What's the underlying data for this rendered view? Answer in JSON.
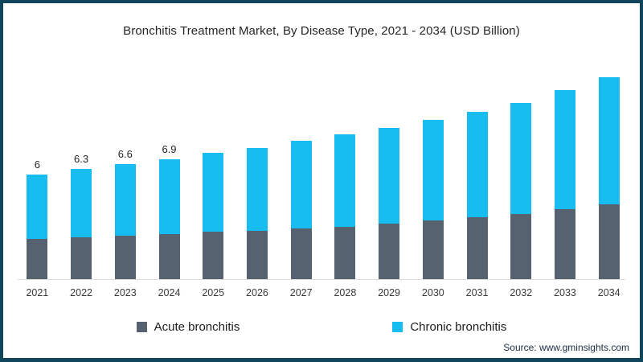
{
  "page": {
    "border_color": "#11455c",
    "background": "#ffffff"
  },
  "chart_data": {
    "type": "bar",
    "stacked": true,
    "title": "Bronchitis Treatment Market, By Disease Type, 2021 - 2034 (USD Billion)",
    "unit": "USD Billion",
    "categories": [
      "2021",
      "2022",
      "2023",
      "2024",
      "2025",
      "2026",
      "2027",
      "2028",
      "2029",
      "2030",
      "2031",
      "2032",
      "2033",
      "2034"
    ],
    "series": [
      {
        "name": "Acute bronchitis",
        "color": "#566270",
        "values": [
          2.3,
          2.4,
          2.5,
          2.6,
          2.7,
          2.75,
          2.9,
          3.0,
          3.2,
          3.35,
          3.55,
          3.75,
          4.0,
          4.3
        ]
      },
      {
        "name": "Chronic bronchitis",
        "color": "#17bcf0",
        "values": [
          3.7,
          3.9,
          4.1,
          4.3,
          4.5,
          4.75,
          5.0,
          5.3,
          5.5,
          5.75,
          6.05,
          6.35,
          6.8,
          7.3
        ]
      }
    ],
    "bar_labels": [
      "6",
      "6.3",
      "6.6",
      "6.9",
      "",
      "",
      "",
      "",
      "",
      "",
      "",
      "",
      "",
      ""
    ],
    "legend_position": "bottom",
    "grid": false,
    "ylim": [
      0,
      12
    ]
  },
  "footer": {
    "source": "Source: www.gminsights.com"
  }
}
